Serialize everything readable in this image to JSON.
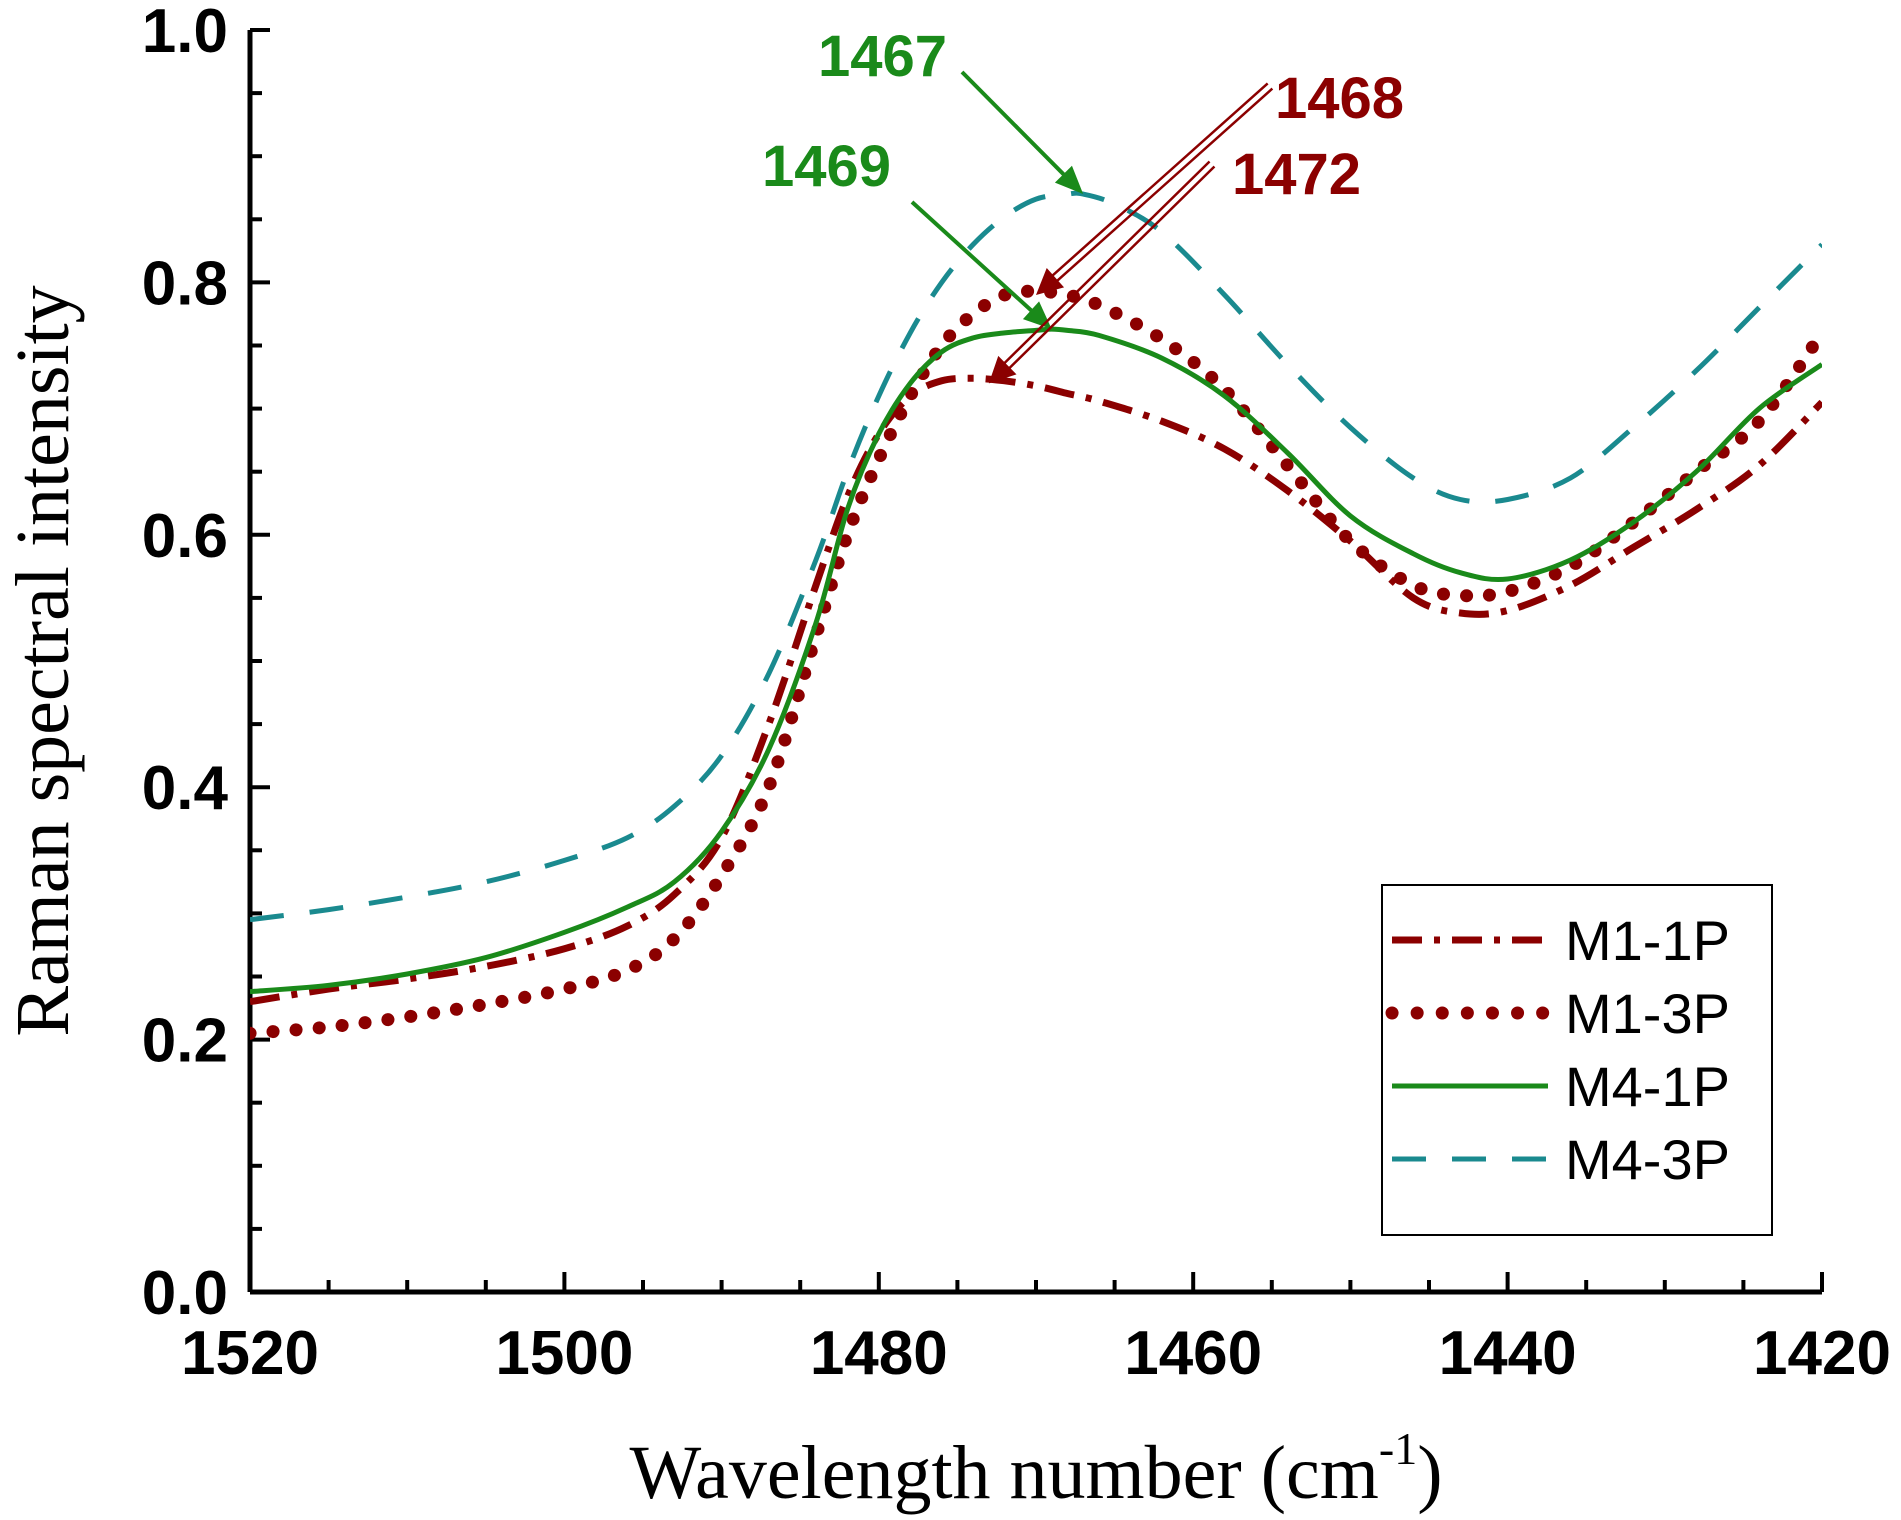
{
  "chart_data": {
    "type": "line",
    "title": "",
    "xlabel": "Wavelength number (cm",
    "xlabel_sup": "-1",
    "xlabel_close": ")",
    "ylabel": "Raman spectral intensity",
    "xlim": [
      1520,
      1420
    ],
    "ylim": [
      0.0,
      1.0
    ],
    "x_ticks": [
      1520,
      1500,
      1480,
      1460,
      1440,
      1420
    ],
    "y_ticks": [
      "0.0",
      "0.2",
      "0.4",
      "0.6",
      "0.8",
      "1.0"
    ],
    "legend_position": "bottom-right",
    "series": [
      {
        "name": "M1-1P",
        "color": "#8b0000",
        "style": "dashdot",
        "x": [
          1520,
          1515,
          1510,
          1505,
          1500,
          1496,
          1493,
          1490,
          1487,
          1484,
          1482,
          1480,
          1478,
          1476,
          1474,
          1472,
          1470,
          1468,
          1466,
          1462,
          1458,
          1454,
          1450,
          1446,
          1443,
          1440,
          1436,
          1432,
          1428,
          1424,
          1420
        ],
        "y": [
          0.23,
          0.24,
          0.248,
          0.258,
          0.272,
          0.29,
          0.315,
          0.36,
          0.45,
          0.56,
          0.63,
          0.68,
          0.71,
          0.722,
          0.724,
          0.722,
          0.718,
          0.712,
          0.706,
          0.69,
          0.668,
          0.635,
          0.595,
          0.55,
          0.538,
          0.54,
          0.56,
          0.59,
          0.62,
          0.655,
          0.705
        ]
      },
      {
        "name": "M1-3P",
        "color": "#8b0000",
        "style": "dotted",
        "x": [
          1520,
          1515,
          1510,
          1505,
          1500,
          1496,
          1493,
          1490,
          1487,
          1484,
          1482,
          1480,
          1478,
          1476,
          1474,
          1472,
          1470,
          1468,
          1466,
          1462,
          1458,
          1454,
          1450,
          1446,
          1443,
          1440,
          1436,
          1432,
          1428,
          1424,
          1420
        ],
        "y": [
          0.205,
          0.21,
          0.218,
          0.228,
          0.24,
          0.255,
          0.28,
          0.33,
          0.4,
          0.52,
          0.6,
          0.66,
          0.71,
          0.75,
          0.775,
          0.79,
          0.793,
          0.79,
          0.782,
          0.755,
          0.715,
          0.655,
          0.595,
          0.56,
          0.552,
          0.555,
          0.575,
          0.61,
          0.65,
          0.69,
          0.76
        ]
      },
      {
        "name": "M4-1P",
        "color": "#1a8a1a",
        "style": "solid",
        "x": [
          1520,
          1515,
          1510,
          1505,
          1500,
          1496,
          1493,
          1490,
          1487,
          1484,
          1482,
          1480,
          1478,
          1476,
          1474,
          1472,
          1470,
          1469,
          1468,
          1466,
          1462,
          1458,
          1454,
          1450,
          1446,
          1443,
          1440,
          1436,
          1432,
          1428,
          1424,
          1420
        ],
        "y": [
          0.238,
          0.243,
          0.252,
          0.265,
          0.285,
          0.305,
          0.325,
          0.365,
          0.43,
          0.53,
          0.62,
          0.68,
          0.72,
          0.745,
          0.756,
          0.76,
          0.762,
          0.763,
          0.762,
          0.758,
          0.74,
          0.71,
          0.665,
          0.615,
          0.585,
          0.57,
          0.565,
          0.58,
          0.61,
          0.65,
          0.7,
          0.735
        ]
      },
      {
        "name": "M4-3P",
        "color": "#1a8a8f",
        "style": "dashed",
        "x": [
          1520,
          1515,
          1510,
          1505,
          1500,
          1496,
          1493,
          1490,
          1487,
          1484,
          1482,
          1480,
          1478,
          1476,
          1474,
          1472,
          1470,
          1468,
          1467,
          1465,
          1462,
          1458,
          1454,
          1450,
          1446,
          1443,
          1440,
          1436,
          1432,
          1428,
          1424,
          1420
        ],
        "y": [
          0.295,
          0.303,
          0.313,
          0.325,
          0.342,
          0.36,
          0.385,
          0.425,
          0.49,
          0.58,
          0.65,
          0.71,
          0.76,
          0.8,
          0.83,
          0.852,
          0.866,
          0.87,
          0.87,
          0.862,
          0.84,
          0.79,
          0.735,
          0.685,
          0.645,
          0.628,
          0.628,
          0.645,
          0.685,
          0.73,
          0.78,
          0.83
        ]
      }
    ],
    "annotations": [
      {
        "label": "1467",
        "color": "#1a8a1a",
        "target_x": 1467,
        "target_y": 0.87
      },
      {
        "label": "1469",
        "color": "#1a8a1a",
        "target_x": 1469,
        "target_y": 0.763
      },
      {
        "label": "1468",
        "color": "#8b0000",
        "target_x": 1470,
        "target_y": 0.79
      },
      {
        "label": "1472",
        "color": "#8b0000",
        "target_x": 1473,
        "target_y": 0.72
      }
    ]
  }
}
